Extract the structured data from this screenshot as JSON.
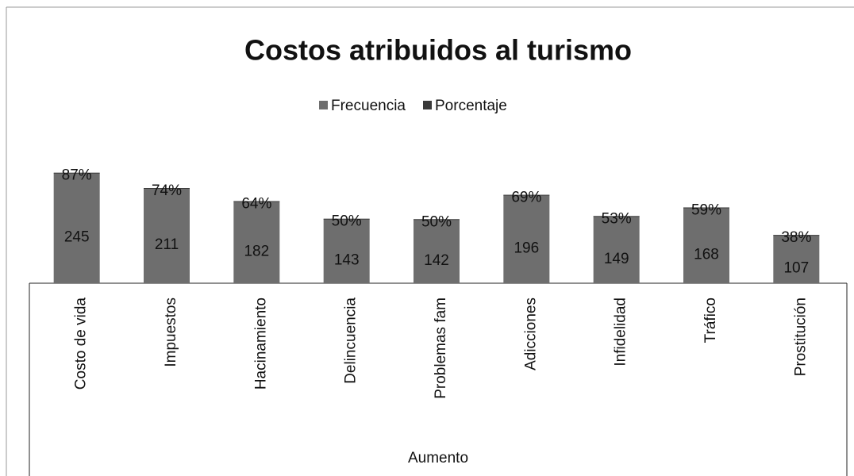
{
  "chart_data": {
    "type": "stacked_bar",
    "title": "Costos atribuidos al turismo",
    "x_label": "Aumento",
    "categories": [
      "Costo  de vida",
      "Impuestos",
      "Hacinamiento",
      "Delincuencia",
      "Problemas fam",
      "Adicciones",
      "Infidelidad",
      "Tráfico",
      "Prostitución"
    ],
    "series": [
      {
        "name": "Frecuencia",
        "color": "#6e6e6e",
        "values": [
          245,
          211,
          182,
          143,
          142,
          196,
          149,
          168,
          107
        ]
      },
      {
        "name": "Porcentaje",
        "color": "#3a3a3a",
        "values": [
          0.87,
          0.74,
          0.64,
          0.5,
          0.5,
          0.69,
          0.53,
          0.59,
          0.38
        ],
        "value_labels": [
          "87%",
          "74%",
          "64%",
          "50%",
          "50%",
          "69%",
          "53%",
          "59%",
          "38%"
        ]
      }
    ],
    "ylim": [
      0,
      300
    ],
    "legend": "top"
  }
}
